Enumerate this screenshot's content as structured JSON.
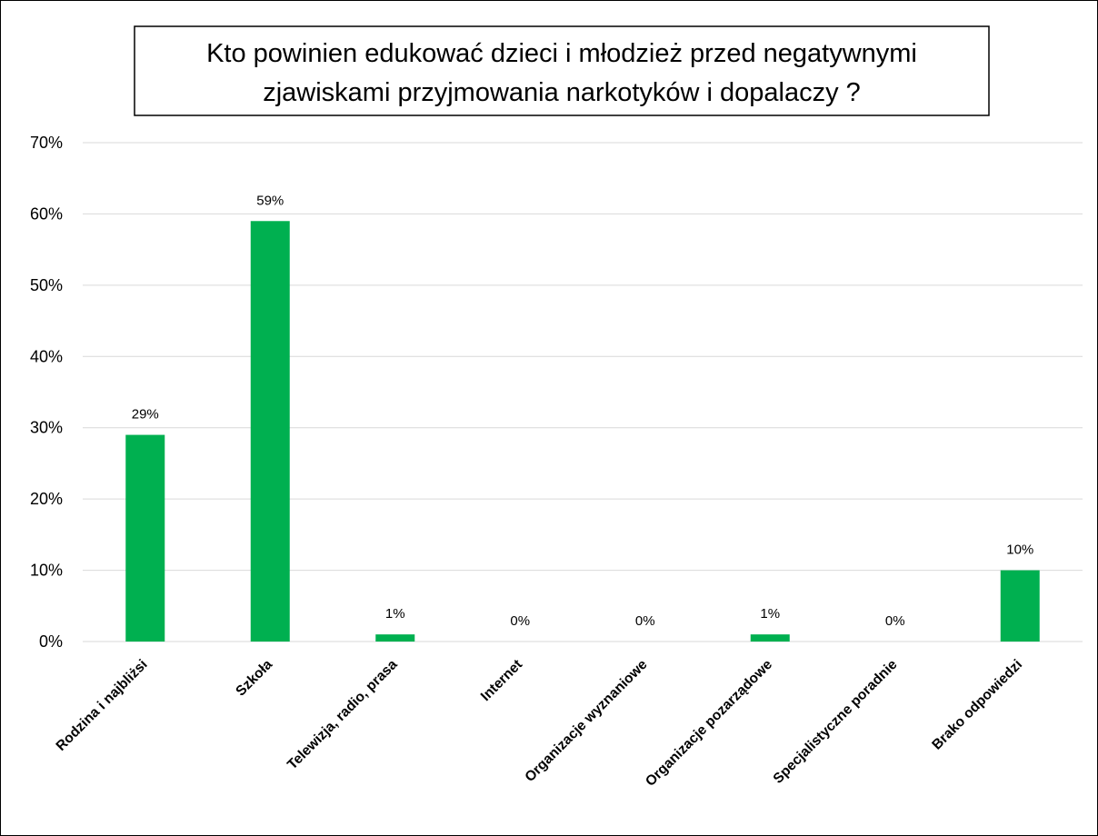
{
  "chart_data": {
    "type": "bar",
    "title_lines": [
      "Kto powinien edukować dzieci i młodzież przed negatywnymi",
      "zjawiskami przyjmowania narkotyków i dopalaczy ?"
    ],
    "categories": [
      "Rodzina i najbliżsi",
      "Szkoła",
      "Telewizja, radio, prasa",
      "Internet",
      "Organizacje wyznaniowe",
      "Organizacje pozarządowe",
      "Specjalistyczne poradnie",
      "Brako odpowiedzi"
    ],
    "values": [
      29,
      59,
      1,
      0,
      0,
      1,
      0,
      10
    ],
    "data_labels": [
      "29%",
      "59%",
      "1%",
      "0%",
      "0%",
      "1%",
      "0%",
      "10%"
    ],
    "y_ticks": [
      "0%",
      "10%",
      "20%",
      "30%",
      "40%",
      "50%",
      "60%",
      "70%"
    ],
    "ylim": [
      0,
      70
    ],
    "grid": true,
    "legend": false,
    "colors": {
      "bar": "#00b050",
      "grid": "#d9d9d9",
      "title_border": "#000000"
    }
  }
}
